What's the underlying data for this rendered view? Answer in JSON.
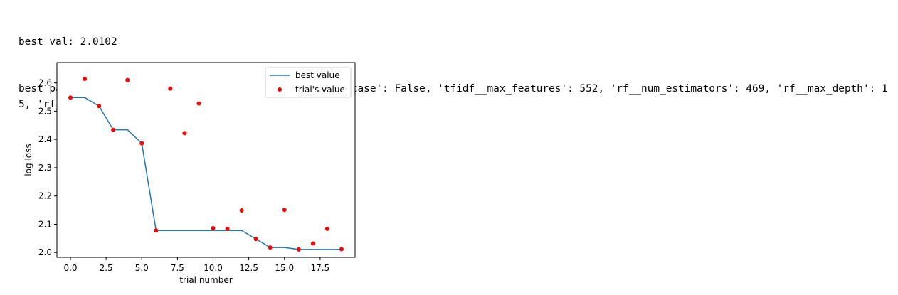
{
  "output": {
    "line1": "best val: 2.0102",
    "line2": "best params: {'tfidf__analyzer': 'word', 'tfidf__lowercase': False, 'tfidf__max_features': 552, 'rf__num_estimators': 469, 'rf__max_depth': 15, 'rf__min_samples_split': 17}"
  },
  "chart_data": {
    "type": "line",
    "title": "",
    "xlabel": "trial number",
    "ylabel": "log loss",
    "xlim": [
      -0.95,
      19.95
    ],
    "ylim": [
      1.983,
      2.672
    ],
    "x_ticks": [
      0.0,
      2.5,
      5.0,
      7.5,
      10.0,
      12.5,
      15.0,
      17.5
    ],
    "x_tick_labels": [
      "0.0",
      "2.5",
      "5.0",
      "7.5",
      "10.0",
      "12.5",
      "15.0",
      "17.5"
    ],
    "y_ticks": [
      2.0,
      2.1,
      2.2,
      2.3,
      2.4,
      2.5,
      2.6
    ],
    "y_tick_labels": [
      "2.0",
      "2.1",
      "2.2",
      "2.3",
      "2.4",
      "2.5",
      "2.6"
    ],
    "grid": false,
    "legend_position": "top-right",
    "series": [
      {
        "name": "best value",
        "kind": "line",
        "color": "#1f77b4",
        "x": [
          0,
          1,
          2,
          3,
          4,
          5,
          6,
          7,
          8,
          9,
          10,
          11,
          12,
          13,
          14,
          15,
          16,
          17,
          18,
          19
        ],
        "y": [
          2.548,
          2.548,
          2.518,
          2.434,
          2.434,
          2.386,
          2.078,
          2.078,
          2.078,
          2.078,
          2.078,
          2.078,
          2.078,
          2.048,
          2.018,
          2.018,
          2.011,
          2.011,
          2.011,
          2.011
        ]
      },
      {
        "name": "trial's value",
        "kind": "scatter",
        "color": "#ff0000",
        "x": [
          0,
          1,
          2,
          3,
          4,
          5,
          6,
          7,
          8,
          9,
          10,
          11,
          12,
          13,
          14,
          15,
          16,
          17,
          18,
          19
        ],
        "y": [
          2.548,
          2.614,
          2.518,
          2.434,
          2.61,
          2.386,
          2.078,
          2.58,
          2.422,
          2.527,
          2.086,
          2.084,
          2.149,
          2.048,
          2.018,
          2.151,
          2.011,
          2.032,
          2.084,
          2.012
        ]
      }
    ]
  }
}
